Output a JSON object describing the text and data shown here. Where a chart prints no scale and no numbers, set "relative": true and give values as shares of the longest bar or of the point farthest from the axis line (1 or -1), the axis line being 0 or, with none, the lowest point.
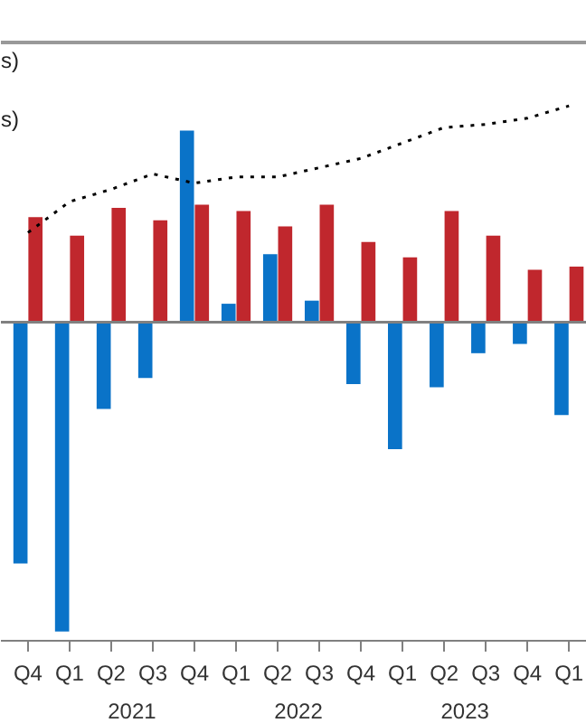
{
  "chart_data": {
    "type": "bar",
    "relative": true,
    "categories": [
      "Q4",
      "Q1",
      "Q2",
      "Q3",
      "Q4",
      "Q1",
      "Q2",
      "Q3",
      "Q4",
      "Q1",
      "Q2",
      "Q3",
      "Q4",
      "Q1"
    ],
    "series": [
      {
        "color": "#0a73c8",
        "values": [
          -0.78,
          -1,
          -0.28,
          -0.18,
          0.62,
          0.06,
          0.22,
          0.07,
          -0.2,
          -0.41,
          -0.21,
          -0.1,
          -0.07,
          -0.3
        ]
      },
      {
        "color": "#c0272d",
        "values": [
          0.34,
          0.28,
          0.37,
          0.33,
          0.38,
          0.36,
          0.31,
          0.38,
          0.26,
          0.21,
          0.36,
          0.28,
          0.17,
          0.18
        ]
      },
      {
        "type": "line",
        "color": "#000000",
        "line_style": "dotted",
        "values": [
          0.29,
          0.39,
          0.43,
          0.48,
          0.45,
          0.47,
          0.47,
          0.5,
          0.53,
          0.58,
          0.63,
          0.64,
          0.66,
          0.7
        ]
      }
    ],
    "annotations": [
      "s)",
      "s)",
      "2021",
      "2022",
      "2023"
    ],
    "grid": false
  }
}
